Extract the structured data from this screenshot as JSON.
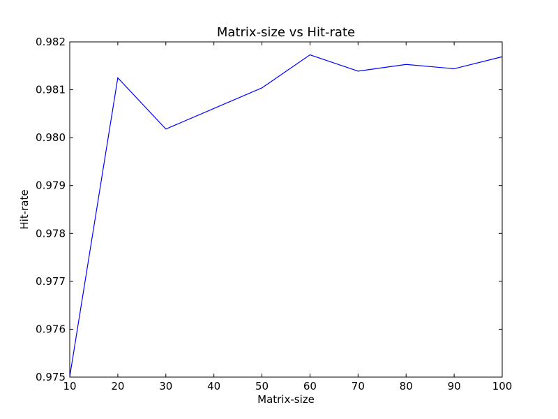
{
  "chart_data": {
    "type": "line",
    "title": "Matrix-size vs Hit-rate",
    "xlabel": "Matrix-size",
    "ylabel": "Hit-rate",
    "xlim": [
      10,
      100
    ],
    "ylim": [
      0.975,
      0.982
    ],
    "x_ticks": [
      "10",
      "20",
      "30",
      "40",
      "50",
      "60",
      "70",
      "80",
      "90",
      "100"
    ],
    "y_ticks": [
      "0.975",
      "0.976",
      "0.977",
      "0.978",
      "0.979",
      "0.980",
      "0.981",
      "0.982"
    ],
    "grid": false,
    "series": [
      {
        "color": "#0000ff",
        "x": [
          10,
          20,
          30,
          40,
          50,
          60,
          70,
          80,
          90,
          100
        ],
        "values": [
          0.97501,
          0.98125,
          0.98018,
          0.98061,
          0.98104,
          0.98173,
          0.98139,
          0.98153,
          0.98144,
          0.98169
        ]
      }
    ]
  }
}
